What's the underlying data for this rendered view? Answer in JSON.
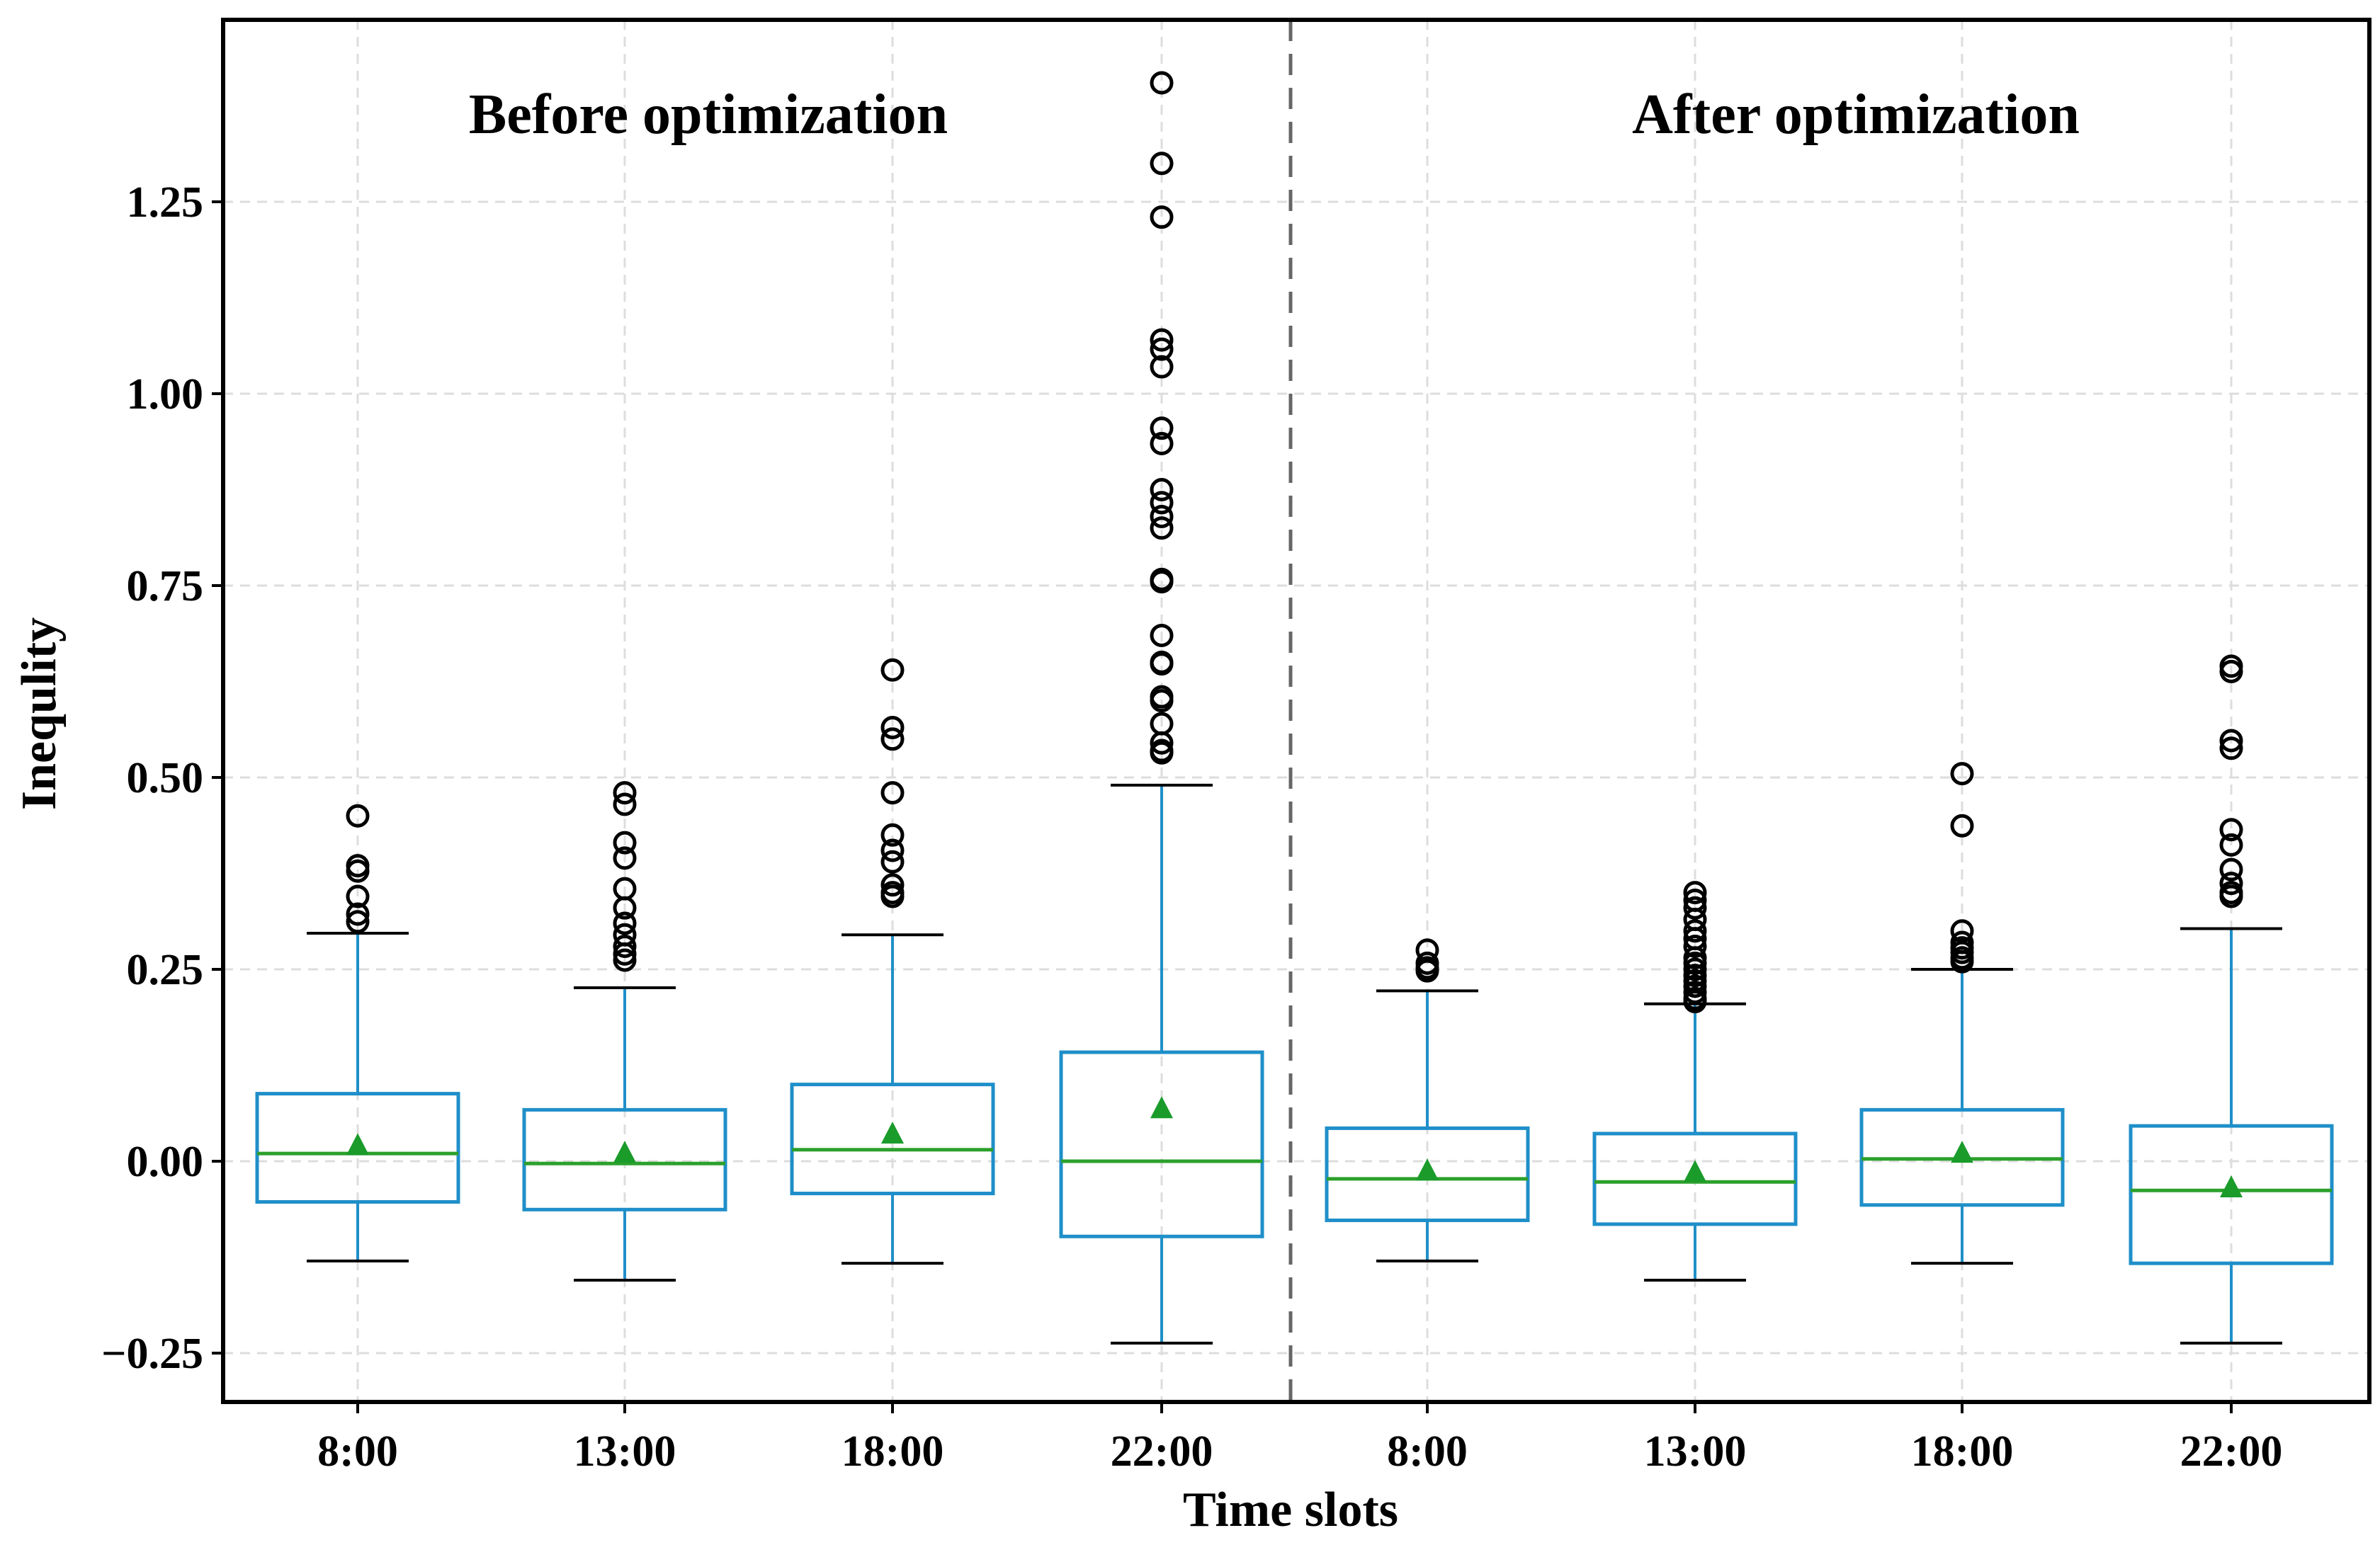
{
  "chart_data": {
    "type": "boxplot",
    "xlabel": "Time slots",
    "ylabel": "Inequlity",
    "ylim": [
      -0.32,
      1.5
    ],
    "yticks": [
      -0.25,
      0.0,
      0.25,
      0.5,
      0.75,
      1.0,
      1.25
    ],
    "ytick_labels": [
      "−0.25",
      "0.00",
      "0.25",
      "0.50",
      "0.75",
      "1.00",
      "1.25"
    ],
    "grid": true,
    "panel_titles": [
      "Before optimization",
      "After optimization"
    ],
    "colors": {
      "box": "#1f8fc9",
      "median": "#2ca02c",
      "mean": "#1a9b2a",
      "outlier": "#000000",
      "whisker_cap": "#000000",
      "divider": "#666666"
    },
    "boxes": [
      {
        "group": "Before optimization",
        "label": "8:00",
        "whislo": -0.13,
        "q1": -0.053,
        "med": 0.01,
        "q3": 0.088,
        "whishi": 0.297,
        "mean": 0.02,
        "fliers": [
          0.45,
          0.385,
          0.378,
          0.345,
          0.322,
          0.312
        ]
      },
      {
        "group": "Before optimization",
        "label": "13:00",
        "whislo": -0.155,
        "q1": -0.063,
        "med": -0.003,
        "q3": 0.067,
        "whishi": 0.226,
        "mean": 0.01,
        "fliers": [
          0.48,
          0.465,
          0.415,
          0.395,
          0.355,
          0.33,
          0.31,
          0.295,
          0.28,
          0.27,
          0.262
        ]
      },
      {
        "group": "Before optimization",
        "label": "18:00",
        "whislo": -0.133,
        "q1": -0.042,
        "med": 0.015,
        "q3": 0.1,
        "whishi": 0.295,
        "mean": 0.035,
        "fliers": [
          0.64,
          0.565,
          0.55,
          0.48,
          0.425,
          0.405,
          0.39,
          0.36,
          0.35,
          0.345
        ]
      },
      {
        "group": "Before optimization",
        "label": "22:00",
        "whislo": -0.237,
        "q1": -0.098,
        "med": 0.0,
        "q3": 0.142,
        "whishi": 0.49,
        "mean": 0.068,
        "fliers": [
          1.405,
          1.3,
          1.23,
          1.07,
          1.058,
          1.035,
          0.955,
          0.935,
          0.875,
          0.858,
          0.84,
          0.825,
          0.758,
          0.755,
          0.685,
          0.65,
          0.648,
          0.605,
          0.6,
          0.57,
          0.545,
          0.535,
          0.532
        ]
      },
      {
        "group": "After optimization",
        "label": "8:00",
        "whislo": -0.13,
        "q1": -0.077,
        "med": -0.023,
        "q3": 0.043,
        "whishi": 0.222,
        "mean": -0.013,
        "fliers": [
          0.275,
          0.258,
          0.252,
          0.248
        ]
      },
      {
        "group": "After optimization",
        "label": "13:00",
        "whislo": -0.155,
        "q1": -0.082,
        "med": -0.027,
        "q3": 0.036,
        "whishi": 0.205,
        "mean": -0.015,
        "fliers": [
          0.35,
          0.34,
          0.33,
          0.315,
          0.3,
          0.29,
          0.28,
          0.265,
          0.258,
          0.25,
          0.242,
          0.235,
          0.228,
          0.22,
          0.212,
          0.208
        ]
      },
      {
        "group": "After optimization",
        "label": "18:00",
        "whislo": -0.133,
        "q1": -0.057,
        "med": 0.003,
        "q3": 0.067,
        "whishi": 0.25,
        "mean": 0.01,
        "fliers": [
          0.505,
          0.437,
          0.3,
          0.285,
          0.278,
          0.272,
          0.265,
          0.26
        ]
      },
      {
        "group": "After optimization",
        "label": "22:00",
        "whislo": -0.237,
        "q1": -0.133,
        "med": -0.038,
        "q3": 0.046,
        "whishi": 0.303,
        "mean": -0.035,
        "fliers": [
          0.645,
          0.638,
          0.548,
          0.538,
          0.432,
          0.412,
          0.38,
          0.362,
          0.35,
          0.345
        ]
      }
    ]
  }
}
